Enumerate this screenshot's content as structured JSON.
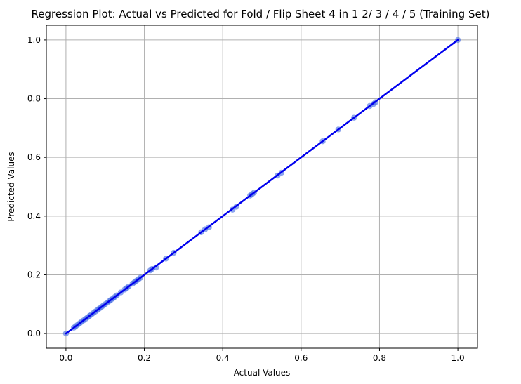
{
  "chart_data": {
    "type": "scatter",
    "title": "Regression Plot: Actual vs Predicted for Fold / Flip Sheet 4 in 1 2/ 3 / 4 / 5 (Training Set)",
    "xlabel": "Actual Values",
    "ylabel": "Predicted Values",
    "xlim": [
      -0.05,
      1.05
    ],
    "ylim": [
      -0.05,
      1.05
    ],
    "xticks": [
      0.0,
      0.2,
      0.4,
      0.6,
      0.8,
      1.0
    ],
    "yticks": [
      0.0,
      0.2,
      0.4,
      0.6,
      0.8,
      1.0
    ],
    "xtick_labels": [
      "0.0",
      "0.2",
      "0.4",
      "0.6",
      "0.8",
      "1.0"
    ],
    "ytick_labels": [
      "0.0",
      "0.2",
      "0.4",
      "0.6",
      "0.8",
      "1.0"
    ],
    "grid": true,
    "point_color": "#4169e1",
    "line_color": "#0000ee",
    "points": {
      "x": [
        0.0,
        0.02,
        0.025,
        0.03,
        0.035,
        0.04,
        0.045,
        0.05,
        0.055,
        0.06,
        0.065,
        0.07,
        0.075,
        0.08,
        0.085,
        0.09,
        0.095,
        0.1,
        0.105,
        0.11,
        0.115,
        0.12,
        0.125,
        0.13,
        0.14,
        0.15,
        0.155,
        0.16,
        0.17,
        0.175,
        0.18,
        0.185,
        0.19,
        0.215,
        0.22,
        0.23,
        0.255,
        0.275,
        0.345,
        0.355,
        0.365,
        0.425,
        0.435,
        0.47,
        0.475,
        0.48,
        0.54,
        0.55,
        0.655,
        0.695,
        0.735,
        0.775,
        0.785,
        0.79,
        1.0
      ],
      "y": [
        0.0,
        0.02,
        0.025,
        0.03,
        0.035,
        0.04,
        0.045,
        0.05,
        0.055,
        0.06,
        0.065,
        0.07,
        0.075,
        0.08,
        0.085,
        0.09,
        0.095,
        0.1,
        0.105,
        0.11,
        0.115,
        0.12,
        0.125,
        0.13,
        0.14,
        0.15,
        0.155,
        0.16,
        0.17,
        0.175,
        0.18,
        0.185,
        0.19,
        0.215,
        0.22,
        0.225,
        0.255,
        0.275,
        0.345,
        0.355,
        0.362,
        0.422,
        0.432,
        0.47,
        0.475,
        0.48,
        0.538,
        0.548,
        0.655,
        0.695,
        0.735,
        0.775,
        0.782,
        0.788,
        1.0
      ]
    },
    "regression_line": {
      "x": [
        0.0,
        1.0
      ],
      "y": [
        0.0,
        1.0
      ]
    }
  }
}
